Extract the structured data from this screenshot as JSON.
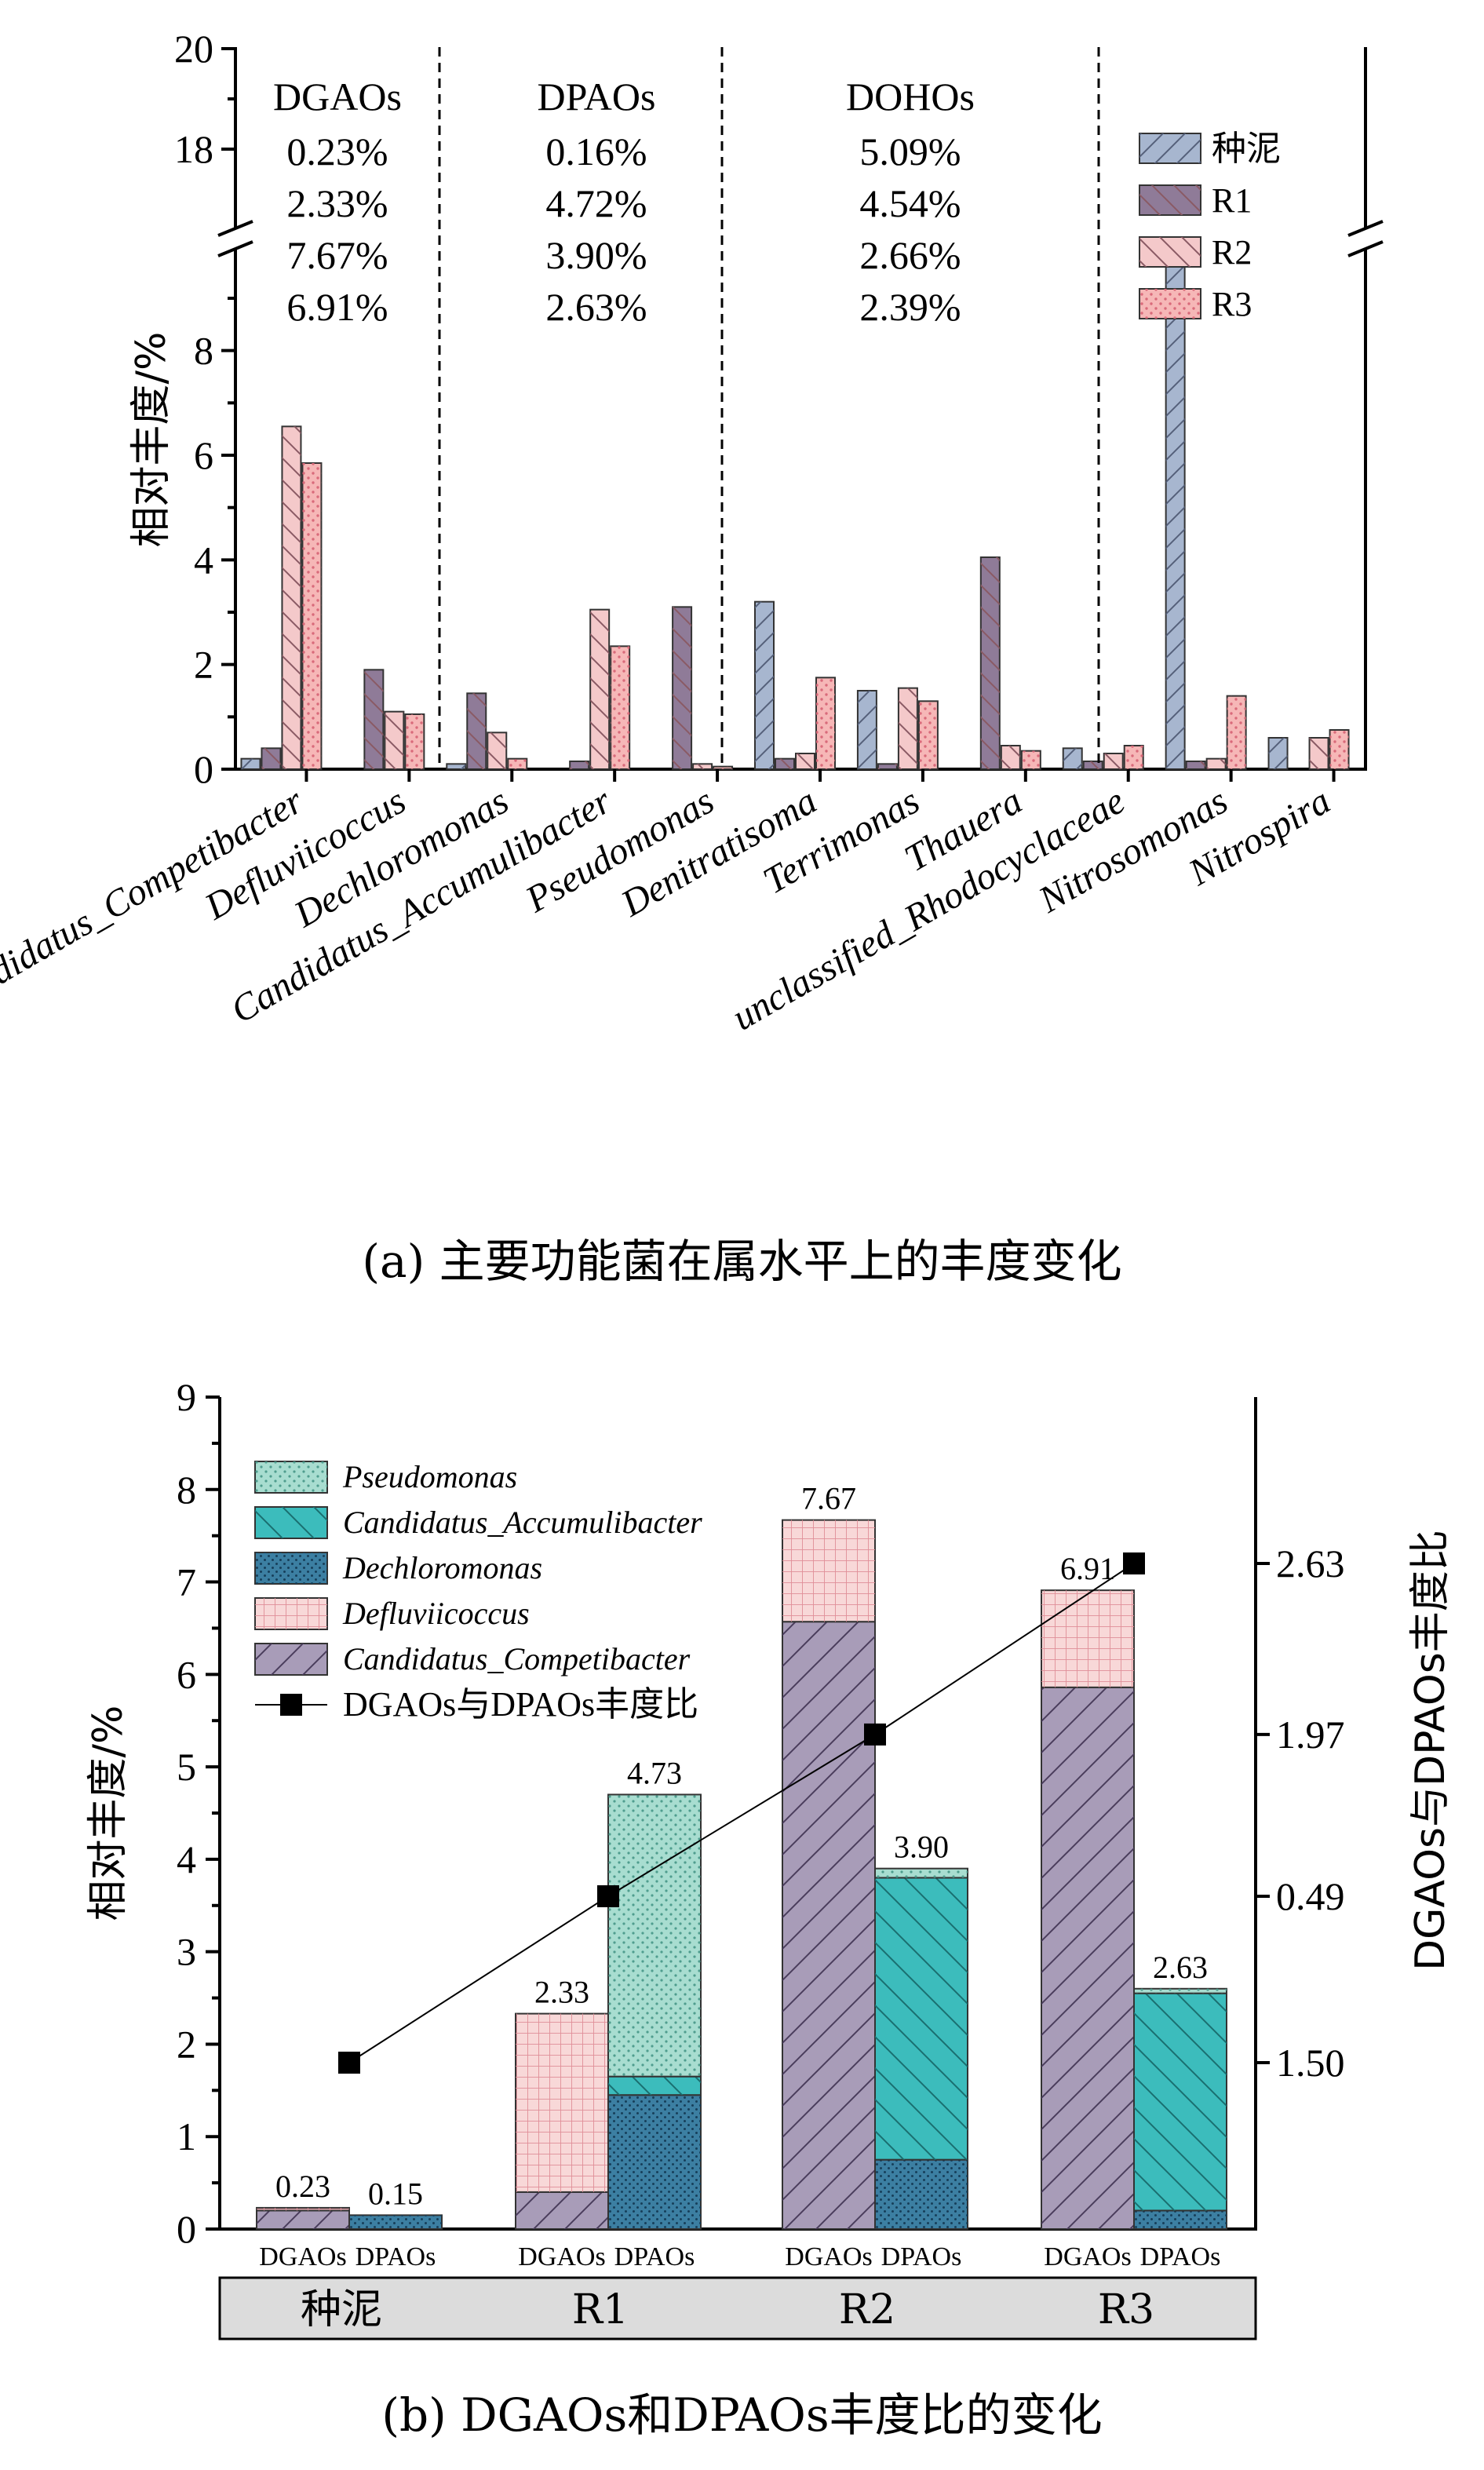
{
  "captions": {
    "a": "(a) 主要功能菌在属水平上的丰度变化",
    "b": "(b) DGAOs和DPAOs丰度比的变化"
  },
  "colors": {
    "seed": "#a7b6cf",
    "R1": "#8f7b98",
    "R2": "#f4c9ca",
    "R3": "#f6b7b7",
    "competibacter": "#a89cb8",
    "defluviicoccus": "#f8d8d8",
    "dechloromonas": "#3c7fa2",
    "accumulibacter": "#3cbcbc",
    "pseudomonas": "#a8ddd0",
    "ratio_line": "#000000"
  },
  "chart_data": [
    {
      "type": "bar",
      "ylabel": "相对丰度/%",
      "ylim": [
        0,
        20
      ],
      "axis_break": [
        9.8,
        17
      ],
      "yticks": [
        "0",
        "2",
        "4",
        "6",
        "8",
        "18",
        "20"
      ],
      "legend_position": "top-right",
      "categories": [
        "Candidatus_Competibacter",
        "Defluviicoccus",
        "Dechloromonas",
        "Candidatus_Accumulibacter",
        "Pseudomonas",
        "Denitratisoma",
        "Terrimonas",
        "Thauera",
        "unclassified_Rhodocyclaceae",
        "Nitrosomonas",
        "Nitrospira"
      ],
      "series": [
        {
          "name": "种泥",
          "values": [
            0.2,
            0.0,
            0.1,
            0.0,
            0.0,
            3.2,
            1.5,
            0.0,
            0.4,
            16.9,
            0.6
          ]
        },
        {
          "name": "R1",
          "values": [
            0.4,
            1.9,
            1.45,
            0.15,
            3.1,
            0.2,
            0.1,
            4.05,
            0.15,
            0.15,
            0.0
          ]
        },
        {
          "name": "R2",
          "values": [
            6.55,
            1.1,
            0.7,
            3.05,
            0.1,
            0.3,
            1.55,
            0.45,
            0.3,
            0.2,
            0.6
          ]
        },
        {
          "name": "R3",
          "values": [
            5.85,
            1.05,
            0.2,
            2.35,
            0.05,
            1.75,
            1.3,
            0.35,
            0.45,
            1.4,
            0.75
          ]
        }
      ],
      "group_labels": [
        {
          "title": "DGAOs",
          "values": [
            "0.23%",
            "2.33%",
            "7.67%",
            "6.91%"
          ]
        },
        {
          "title": "DPAOs",
          "values": [
            "0.16%",
            "4.72%",
            "3.90%",
            "2.63%"
          ]
        },
        {
          "title": "DOHOs",
          "values": [
            "5.09%",
            "4.54%",
            "2.66%",
            "2.39%"
          ]
        }
      ]
    },
    {
      "type": "bar",
      "stacked": true,
      "ylabel": "相对丰度/%",
      "y2label": "DGAOs与DPAOs丰度比",
      "ylim": [
        0,
        9
      ],
      "yticks": [
        "0",
        "1",
        "2",
        "3",
        "4",
        "5",
        "6",
        "7",
        "8",
        "9"
      ],
      "legend_position": "top-left",
      "groups": [
        "种泥",
        "R1",
        "R2",
        "R3"
      ],
      "bar_labels": [
        "DGAOs",
        "DPAOs"
      ],
      "series": [
        {
          "name": "Pseudomonas",
          "kind": "DPAOs",
          "values": [
            0.0,
            3.05,
            0.1,
            0.05
          ]
        },
        {
          "name": "Candidatus_Accumulibacter",
          "kind": "DPAOs",
          "values": [
            0.0,
            0.2,
            3.05,
            2.35
          ]
        },
        {
          "name": "Dechloromonas",
          "kind": "DPAOs",
          "values": [
            0.15,
            1.45,
            0.75,
            0.2
          ]
        },
        {
          "name": "Defluviicoccus",
          "kind": "DGAOs",
          "values": [
            0.03,
            1.93,
            1.1,
            1.05
          ]
        },
        {
          "name": "Candidatus_Competibacter",
          "kind": "DGAOs",
          "values": [
            0.2,
            0.4,
            6.57,
            5.86
          ]
        }
      ],
      "totals": {
        "DGAOs": [
          "0.23",
          "2.33",
          "7.67",
          "6.91"
        ],
        "DPAOs": [
          "0.15",
          "4.73",
          "3.90",
          "2.63"
        ]
      },
      "ratio": {
        "name": "DGAOs与DPAOs丰度比",
        "tick_labels": [
          "1.50",
          "0.49",
          "1.97",
          "2.63"
        ],
        "plot_y": [
          1.8,
          3.6,
          5.35,
          7.2
        ]
      }
    }
  ]
}
